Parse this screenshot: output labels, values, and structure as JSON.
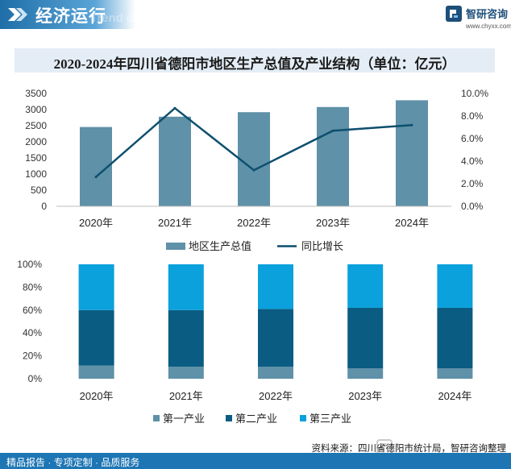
{
  "header": {
    "title": "经济运行",
    "ghost_text": "Trend demand"
  },
  "logo": {
    "name": "智研咨询",
    "url": "www.chyxx.com"
  },
  "chart_title": "2020-2024年四川省德阳市地区生产总值及产业结构（单位：亿元）",
  "chart_data": [
    {
      "type": "bar",
      "title": "2020-2024年四川省德阳市地区生产总值及产业结构（单位：亿元）",
      "categories": [
        "2020年",
        "2021年",
        "2022年",
        "2023年",
        "2024年"
      ],
      "series": [
        {
          "name": "地区生产总值",
          "type": "bar",
          "axis": "left",
          "values": [
            2460,
            2780,
            2920,
            3080,
            3290
          ]
        },
        {
          "name": "同比增长",
          "type": "line",
          "axis": "right",
          "values": [
            2.6,
            8.7,
            3.2,
            6.7,
            7.2
          ]
        }
      ],
      "y_left": {
        "min": 0,
        "max": 3500,
        "ticks": [
          "0",
          "500",
          "1000",
          "1500",
          "2000",
          "2500",
          "3000",
          "3500"
        ]
      },
      "y_right": {
        "min": 0,
        "max": 10,
        "ticks": [
          "0.0%",
          "2.0%",
          "4.0%",
          "6.0%",
          "8.0%",
          "10.0%"
        ]
      },
      "colors": {
        "bar": "#5f91a8",
        "line": "#0d4f6e"
      }
    },
    {
      "type": "bar",
      "stacked": "percent",
      "categories": [
        "2020年",
        "2021年",
        "2022年",
        "2023年",
        "2024年"
      ],
      "series": [
        {
          "name": "第一产业",
          "values": [
            11.5,
            10.5,
            10.5,
            9,
            9
          ],
          "color": "#5f91a8"
        },
        {
          "name": "第二产业",
          "values": [
            48.5,
            49.5,
            50.5,
            53,
            53
          ],
          "color": "#0b5c82"
        },
        {
          "name": "第三产业",
          "values": [
            40,
            40,
            39,
            38,
            38
          ],
          "color": "#0aa1dc"
        }
      ],
      "y_axis": {
        "min": 0,
        "max": 100,
        "ticks": [
          "0%",
          "20%",
          "40%",
          "60%",
          "80%",
          "100%"
        ]
      }
    }
  ],
  "footer": {
    "source": "资料来源：四川省德阳市统计局，智研咨询整理",
    "brand": "智研咨询",
    "services": "精品报告 · 专项定制 · 品质服务"
  }
}
